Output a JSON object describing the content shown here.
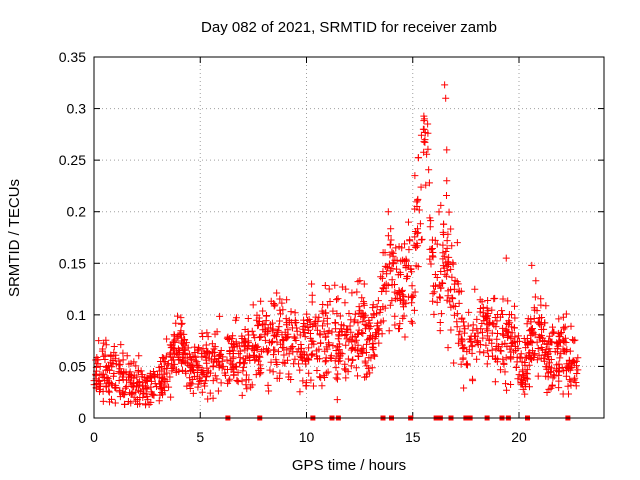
{
  "chart_data": {
    "type": "scatter",
    "title": "Day 082 of 2021, SRMTID for receiver zamb",
    "xlabel": "GPS time / hours",
    "ylabel": "SRMTID / TECUs",
    "xlim": [
      0,
      24
    ],
    "ylim": [
      0,
      0.35
    ],
    "xticks": [
      0,
      5,
      10,
      15,
      20
    ],
    "xtick_labels": [
      "0",
      "5",
      "10",
      "15",
      "20"
    ],
    "yticks": [
      0,
      0.05,
      0.1,
      0.15,
      0.2,
      0.25,
      0.3,
      0.35
    ],
    "ytick_labels": [
      "0",
      "0.05",
      "0.1",
      "0.15",
      "0.2",
      "0.25",
      "0.3",
      "0.35"
    ],
    "grid": true,
    "marker": "+",
    "color": "#ff0000",
    "series_trend": [
      {
        "x": 0.0,
        "y": 0.045,
        "spread": 0.02
      },
      {
        "x": 1.0,
        "y": 0.042,
        "spread": 0.025
      },
      {
        "x": 2.0,
        "y": 0.035,
        "spread": 0.02
      },
      {
        "x": 3.0,
        "y": 0.03,
        "spread": 0.018
      },
      {
        "x": 3.8,
        "y": 0.06,
        "spread": 0.025
      },
      {
        "x": 4.1,
        "y": 0.075,
        "spread": 0.02
      },
      {
        "x": 4.5,
        "y": 0.05,
        "spread": 0.02
      },
      {
        "x": 5.5,
        "y": 0.06,
        "spread": 0.03
      },
      {
        "x": 6.5,
        "y": 0.06,
        "spread": 0.03
      },
      {
        "x": 7.5,
        "y": 0.065,
        "spread": 0.03
      },
      {
        "x": 8.5,
        "y": 0.08,
        "spread": 0.035
      },
      {
        "x": 9.5,
        "y": 0.075,
        "spread": 0.035
      },
      {
        "x": 10.5,
        "y": 0.08,
        "spread": 0.035
      },
      {
        "x": 11.5,
        "y": 0.075,
        "spread": 0.035
      },
      {
        "x": 12.5,
        "y": 0.085,
        "spread": 0.035
      },
      {
        "x": 13.2,
        "y": 0.075,
        "spread": 0.03
      },
      {
        "x": 13.8,
        "y": 0.15,
        "spread": 0.04
      },
      {
        "x": 14.5,
        "y": 0.12,
        "spread": 0.04
      },
      {
        "x": 15.0,
        "y": 0.15,
        "spread": 0.05
      },
      {
        "x": 15.6,
        "y": 0.26,
        "spread": 0.04
      },
      {
        "x": 16.0,
        "y": 0.12,
        "spread": 0.05
      },
      {
        "x": 16.4,
        "y": 0.17,
        "spread": 0.06
      },
      {
        "x": 16.9,
        "y": 0.12,
        "spread": 0.04
      },
      {
        "x": 17.5,
        "y": 0.06,
        "spread": 0.03
      },
      {
        "x": 18.2,
        "y": 0.1,
        "spread": 0.03
      },
      {
        "x": 19.0,
        "y": 0.08,
        "spread": 0.035
      },
      {
        "x": 19.8,
        "y": 0.075,
        "spread": 0.03
      },
      {
        "x": 20.2,
        "y": 0.045,
        "spread": 0.02
      },
      {
        "x": 20.8,
        "y": 0.09,
        "spread": 0.035
      },
      {
        "x": 21.5,
        "y": 0.05,
        "spread": 0.025
      },
      {
        "x": 22.0,
        "y": 0.065,
        "spread": 0.03
      },
      {
        "x": 22.8,
        "y": 0.045,
        "spread": 0.02
      }
    ],
    "peak_points": [
      {
        "x": 13.85,
        "y": 0.2
      },
      {
        "x": 14.2,
        "y": 0.165
      },
      {
        "x": 15.1,
        "y": 0.235
      },
      {
        "x": 15.2,
        "y": 0.205
      },
      {
        "x": 15.5,
        "y": 0.28
      },
      {
        "x": 15.55,
        "y": 0.29
      },
      {
        "x": 15.7,
        "y": 0.285
      },
      {
        "x": 16.5,
        "y": 0.323
      },
      {
        "x": 16.55,
        "y": 0.31
      },
      {
        "x": 16.6,
        "y": 0.26
      },
      {
        "x": 16.6,
        "y": 0.23
      },
      {
        "x": 17.1,
        "y": 0.17
      },
      {
        "x": 19.4,
        "y": 0.155
      },
      {
        "x": 20.6,
        "y": 0.148
      }
    ],
    "zero_markers_x": [
      6.3,
      7.8,
      10.3,
      11.2,
      11.5,
      13.6,
      14.0,
      14.9,
      16.1,
      16.3,
      16.8,
      17.5,
      17.7,
      18.5,
      19.2,
      19.5,
      20.4,
      22.3
    ]
  }
}
